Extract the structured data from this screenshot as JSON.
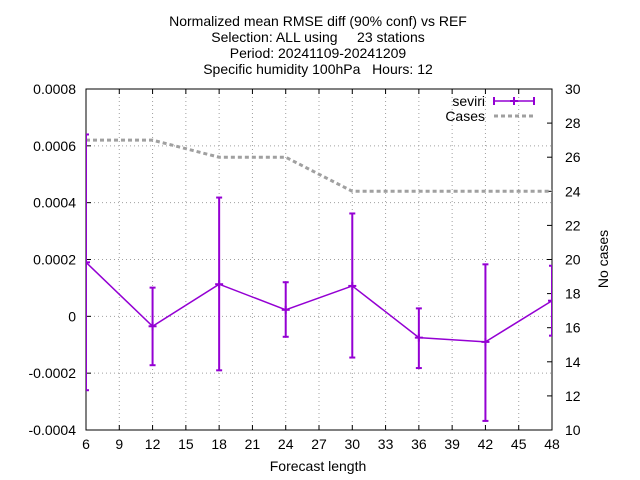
{
  "chart_data": {
    "type": "line",
    "title_lines": [
      "Normalized mean RMSE diff (90% conf) vs REF",
      "Selection: ALL using     23 stations",
      "Period: 20241109-20241209",
      "Specific humidity 100hPa   Hours: 12"
    ],
    "xlabel": "Forecast length",
    "ylabel": "",
    "y2label": "No cases",
    "xlim": [
      6,
      48
    ],
    "ylim": [
      -0.0004,
      0.0008
    ],
    "y2lim": [
      10,
      30
    ],
    "xticks": [
      6,
      9,
      12,
      15,
      18,
      21,
      24,
      27,
      30,
      33,
      36,
      39,
      42,
      45,
      48
    ],
    "yticks": [
      -0.0004,
      -0.0002,
      0,
      0.0002,
      0.0004,
      0.0006,
      0.0008
    ],
    "ytick_labels": [
      "-0.0004",
      "-0.0002",
      "0",
      "0.0002",
      "0.0004",
      "0.0006",
      "0.0008"
    ],
    "y2ticks": [
      10,
      12,
      14,
      16,
      18,
      20,
      22,
      24,
      26,
      28,
      30
    ],
    "grid": true,
    "legend_position": "top-right",
    "series": [
      {
        "name": "seviri",
        "axis": "y1",
        "color": "#9400d3",
        "x": [
          6,
          12,
          18,
          24,
          30,
          36,
          42,
          48
        ],
        "y": [
          0.00019,
          -3.5e-05,
          0.000113,
          2.3e-05,
          0.000107,
          -7.5e-05,
          -9e-05,
          5.5e-05
        ],
        "err_low": [
          -0.00026,
          -0.000172,
          -0.00019,
          -7.2e-05,
          -0.000145,
          -0.000182,
          -0.000368,
          -6.8e-05
        ],
        "err_high": [
          0.00064,
          0.000101,
          0.000418,
          0.00012,
          0.000362,
          2.8e-05,
          0.000183,
          0.000178
        ]
      },
      {
        "name": "Cases",
        "axis": "y2",
        "color": "#a0a0a0",
        "x": [
          6,
          12,
          18,
          24,
          30,
          36,
          42,
          48
        ],
        "y": [
          27,
          27,
          26,
          26,
          24,
          24,
          24,
          24
        ]
      }
    ]
  }
}
